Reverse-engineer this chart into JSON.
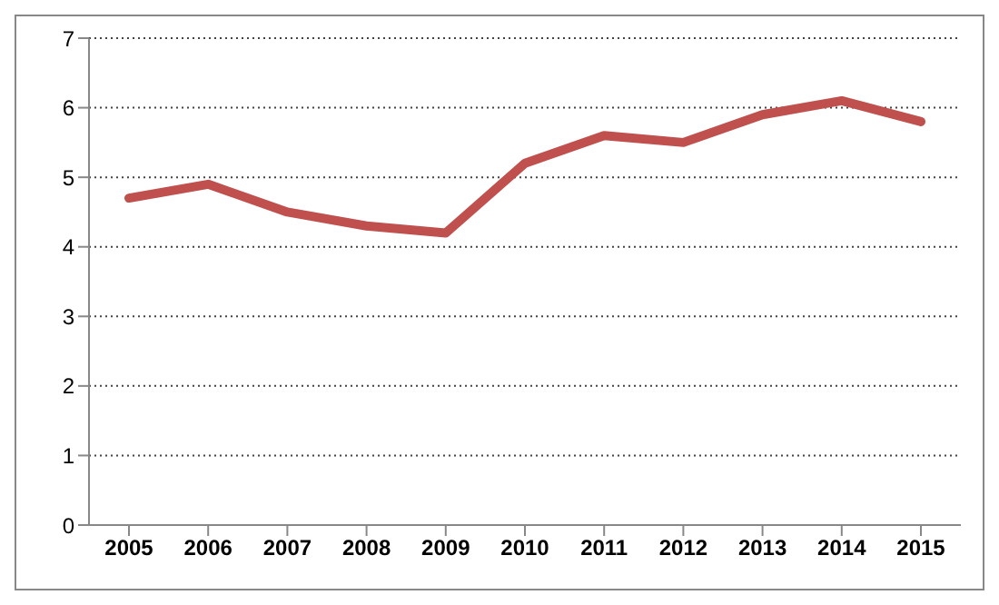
{
  "chart_data": {
    "type": "line",
    "categories": [
      "2005",
      "2006",
      "2007",
      "2008",
      "2009",
      "2010",
      "2011",
      "2012",
      "2013",
      "2014",
      "2015"
    ],
    "series": [
      {
        "color": "#c0504d",
        "values": [
          4.7,
          4.9,
          4.5,
          4.3,
          4.2,
          5.2,
          5.6,
          5.5,
          5.9,
          6.1,
          5.8
        ]
      }
    ],
    "ylim": [
      0,
      7
    ],
    "yticks": [
      0,
      1,
      2,
      3,
      4,
      5,
      6,
      7
    ],
    "grid": "y",
    "marker": "none",
    "line_style": "solid"
  }
}
